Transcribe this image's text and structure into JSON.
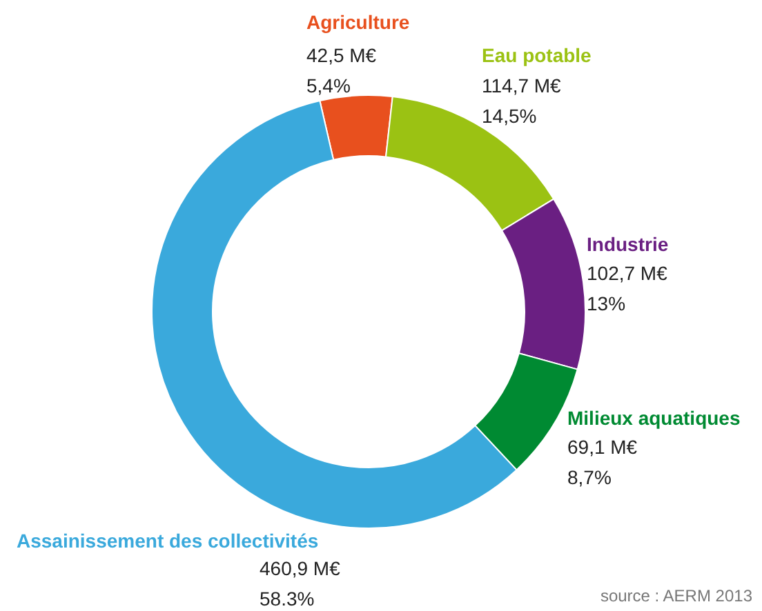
{
  "chart_data": {
    "type": "donut",
    "categories": [
      "Agriculture",
      "Eau potable",
      "Industrie",
      "Milieux aquatiques",
      "Assainissement des collectivités"
    ],
    "values": [
      42.5,
      114.7,
      102.7,
      69.1,
      460.9
    ],
    "colors": [
      "#e8501e",
      "#9bc213",
      "#6a1f82",
      "#008a32",
      "#3aa9dc"
    ],
    "value_labels": [
      "42,5 M€\n5,4%",
      "114,7 M€\n14,5%",
      "102,7 M€\n13%",
      "69,1 M€\n8,7%",
      "460,9 M€\n58.3%"
    ],
    "annotations": [
      "source : AERM 2013"
    ]
  }
}
